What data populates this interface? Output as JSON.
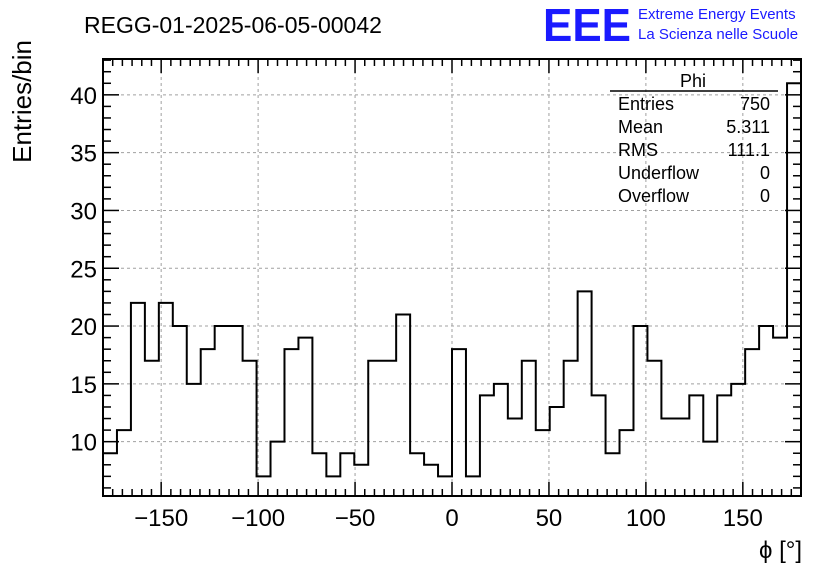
{
  "run_label": "REGG-01-2025-06-05-00042",
  "logo": {
    "mark": "EEE",
    "line1": "Extreme Energy Events",
    "line2": "La Scienza nelle Scuole",
    "color": "#1a1aff"
  },
  "stats_box": {
    "title": "Phi",
    "rows": [
      {
        "label": "Entries",
        "value": "750"
      },
      {
        "label": "Mean",
        "value": "5.311"
      },
      {
        "label": "RMS",
        "value": "111.1"
      },
      {
        "label": "Underflow",
        "value": "0"
      },
      {
        "label": "Overflow",
        "value": "0"
      }
    ]
  },
  "chart_data": {
    "type": "histogram",
    "title": "REGG-01-2025-06-05-00042",
    "xlabel": "ϕ [°]",
    "ylabel": "Entries/bin",
    "xlim": [
      -180,
      180
    ],
    "ylim": [
      5.3,
      43.1
    ],
    "bin_edges_start": -180,
    "bin_width": 7.2,
    "counts": [
      9,
      11,
      22,
      17,
      22,
      20,
      15,
      18,
      20,
      20,
      17,
      7,
      10,
      18,
      19,
      9,
      7,
      9,
      8,
      17,
      17,
      21,
      9,
      8,
      7,
      18,
      7,
      14,
      15,
      12,
      17,
      11,
      13,
      17,
      23,
      14,
      9,
      11,
      20,
      17,
      12,
      12,
      14,
      10,
      14,
      15,
      18,
      20,
      19,
      41
    ],
    "x_ticks": [
      -150,
      -100,
      -50,
      0,
      50,
      100,
      150
    ],
    "x_tick_labels": [
      "−150",
      "−100",
      "−50",
      "0",
      "50",
      "100",
      "150"
    ],
    "y_ticks": [
      10,
      15,
      20,
      25,
      30,
      35,
      40
    ],
    "y_tick_labels": [
      "10",
      "15",
      "20",
      "25",
      "30",
      "35",
      "40"
    ],
    "grid": true,
    "line_color": "#000000"
  }
}
